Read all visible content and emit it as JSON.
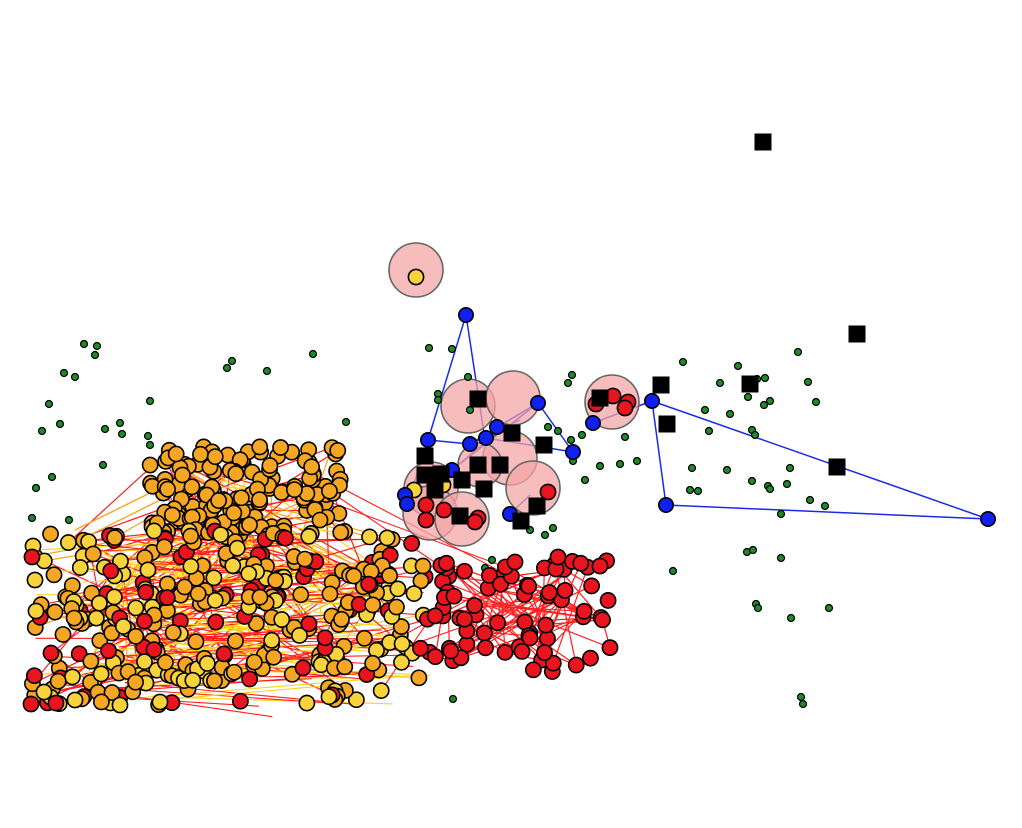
{
  "colors": {
    "background": "#ffffff",
    "orange_node": "#f5a623",
    "yellow_node": "#f9d33c",
    "red_node": "#e8151f",
    "blue_node": "#1020f0",
    "green_dot": "#1f8a2a",
    "black_square": "#000000",
    "halo_fill": "#f4a6a6",
    "edge_red": "#ff1f1f",
    "edge_yellow": "#ffd21f",
    "edge_orange": "#f5a623",
    "edge_blue": "#1a2be8",
    "edge_purple": "#6b2cc8"
  },
  "legend": [],
  "title": ""
}
